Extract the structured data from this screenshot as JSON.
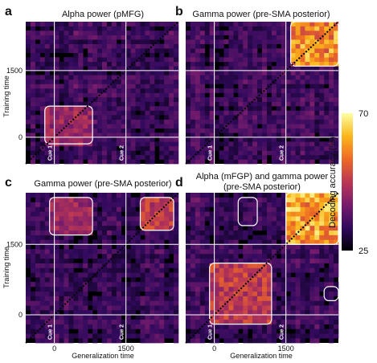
{
  "chart_data": [
    {
      "type": "heatmap",
      "panel_label": "a",
      "title": "Alpha power (pMFG)",
      "title_lines": [
        "Alpha power (pMFG)"
      ],
      "ylabel": "Training time",
      "xlabel": "",
      "yticks": [
        0,
        1500
      ],
      "xticks": [],
      "cue_labels": [
        "Cue 1",
        "Cue 2"
      ],
      "cue_times": [
        0,
        1500
      ],
      "extent_ms": [
        -600,
        2600
      ],
      "clusters": [
        {
          "x": [
            -200,
            800
          ],
          "y": [
            -150,
            700
          ]
        }
      ],
      "hot_regions": [
        {
          "x": [
            -200,
            800
          ],
          "y": [
            -150,
            700
          ],
          "level": 0.45
        }
      ]
    },
    {
      "type": "heatmap",
      "panel_label": "b",
      "title": "Gamma power (pre-SMA posterior)",
      "title_lines": [
        "Gamma power (pre-SMA posterior)"
      ],
      "ylabel": "",
      "xlabel": "",
      "yticks": [],
      "xticks": [],
      "cue_labels": [
        "Cue 1",
        "Cue 2"
      ],
      "cue_times": [
        0,
        1500
      ],
      "extent_ms": [
        -600,
        2600
      ],
      "clusters": [
        {
          "x": [
            1600,
            2600
          ],
          "y": [
            1600,
            2600
          ]
        }
      ],
      "hot_regions": [
        {
          "x": [
            1600,
            2600
          ],
          "y": [
            1600,
            2600
          ],
          "level": 0.8
        }
      ]
    },
    {
      "type": "heatmap",
      "panel_label": "c",
      "title": "Gamma power (pre-SMA posterior)",
      "title_lines": [
        "Gamma power (pre-SMA posterior)"
      ],
      "ylabel": "Training time",
      "xlabel": "Generalization time",
      "yticks": [
        0,
        1500
      ],
      "xticks": [
        0,
        1500
      ],
      "cue_labels": [
        "Cue 1",
        "Cue 2"
      ],
      "cue_times": [
        0,
        1500
      ],
      "extent_ms": [
        -600,
        2600
      ],
      "clusters": [
        {
          "x": [
            -100,
            800
          ],
          "y": [
            1700,
            2500
          ]
        },
        {
          "x": [
            1800,
            2500
          ],
          "y": [
            1800,
            2500
          ]
        }
      ],
      "hot_regions": [
        {
          "x": [
            -100,
            800
          ],
          "y": [
            1700,
            2500
          ],
          "level": 0.45
        },
        {
          "x": [
            1800,
            2500
          ],
          "y": [
            1800,
            2500
          ],
          "level": 0.55
        }
      ]
    },
    {
      "type": "heatmap",
      "panel_label": "d",
      "title": "Alpha (mFGP) and gamma power (pre-SMA posterior)",
      "title_lines": [
        "Alpha (mFGP) and gamma power",
        "(pre-SMA posterior)"
      ],
      "ylabel": "",
      "xlabel": "Generalization time",
      "yticks": [],
      "xticks": [
        0,
        1500
      ],
      "cue_labels": [
        "Cue 1",
        "Cue 2"
      ],
      "cue_times": [
        0,
        1500
      ],
      "extent_ms": [
        -600,
        2600
      ],
      "clusters": [
        {
          "x": [
            1500,
            2600
          ],
          "y": [
            1500,
            2600
          ]
        },
        {
          "x": [
            -100,
            1200
          ],
          "y": [
            -200,
            1100
          ]
        },
        {
          "x": [
            500,
            900
          ],
          "y": [
            1900,
            2500
          ]
        },
        {
          "x": [
            2300,
            2600
          ],
          "y": [
            300,
            600
          ]
        }
      ],
      "hot_regions": [
        {
          "x": [
            1500,
            2600
          ],
          "y": [
            1500,
            2600
          ],
          "level": 0.85
        },
        {
          "x": [
            -100,
            1200
          ],
          "y": [
            -200,
            1100
          ],
          "level": 0.55
        }
      ]
    }
  ],
  "colorbar": {
    "label": "Decoding accuracy (%)",
    "min": 25,
    "max": 70,
    "ticks": [
      70,
      25
    ]
  },
  "colors": {
    "grid_line": "#ffffff",
    "diagonal": "#000000",
    "cluster_outline": "#ffffff",
    "cmap_stops": [
      "#000004",
      "#320a5e",
      "#781c6d",
      "#bb3754",
      "#ed6925",
      "#fbb61a",
      "#fcffa4"
    ]
  }
}
